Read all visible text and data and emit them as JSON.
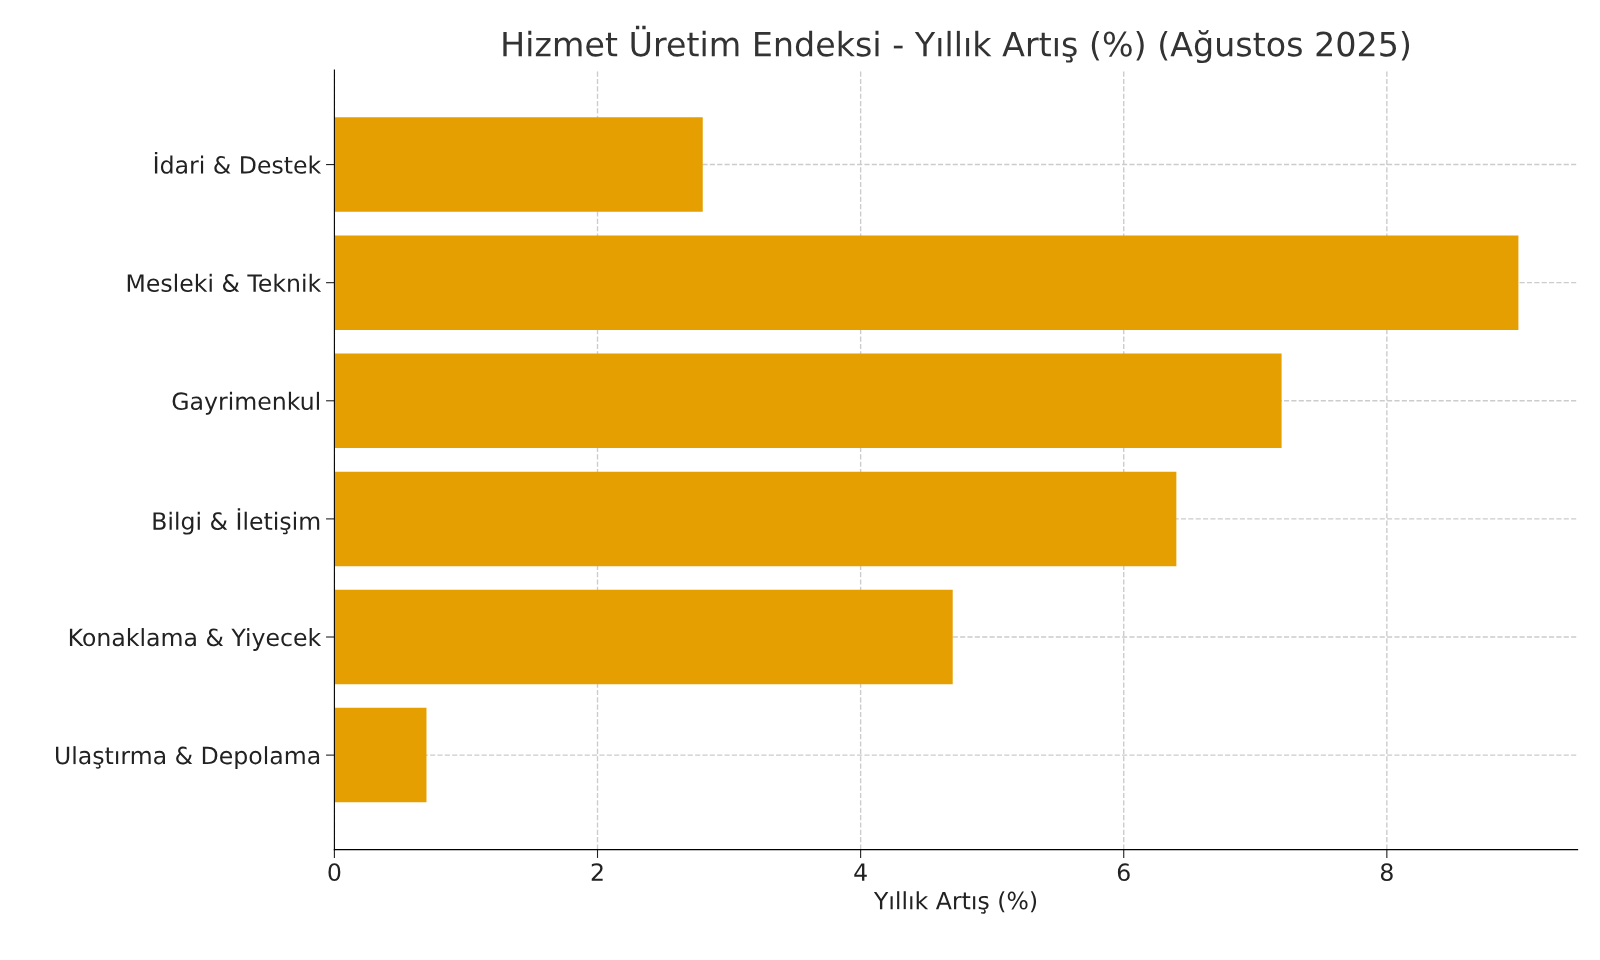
{
  "chart_data": {
    "type": "bar",
    "orientation": "horizontal",
    "title": "Hizmet Üretim Endeksi - Yıllık Artış (%) (Ağustos 2025)",
    "xlabel": "Yıllık Artış (%)",
    "categories": [
      "İdari & Destek",
      "Mesleki & Teknik",
      "Gayrimenkul",
      "Bilgi & İletişim",
      "Konaklama & Yiyecek",
      "Ulaştırma & Depolama"
    ],
    "values": [
      2.8,
      9.0,
      7.2,
      6.4,
      4.7,
      0.7
    ],
    "color": "#e69f00",
    "xlim": [
      0,
      9.45
    ],
    "xticks": [
      0,
      2,
      4,
      6,
      8
    ],
    "grid": true
  }
}
